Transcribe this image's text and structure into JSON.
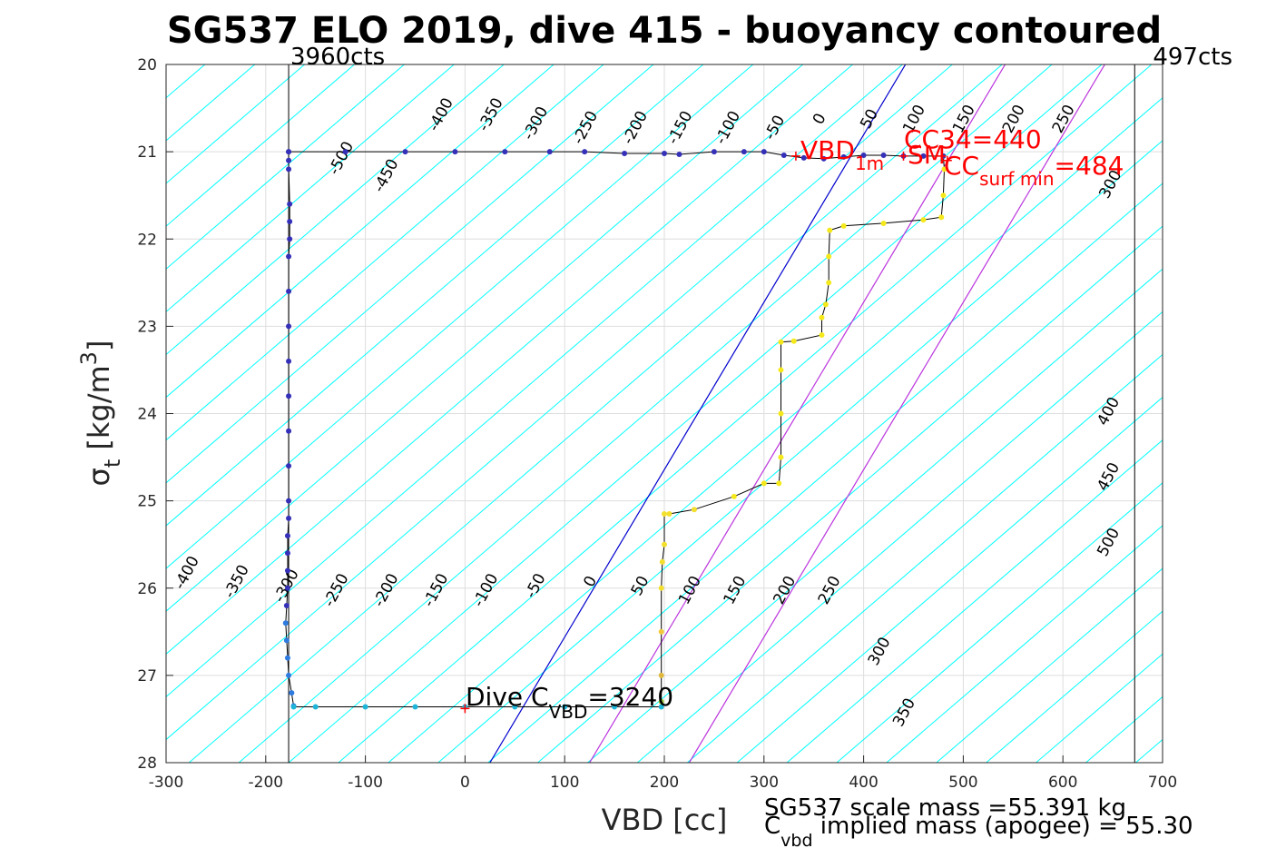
{
  "title": "SG537 ELO 2019, dive 415 - buoyancy contoured",
  "cts_left": "3960cts",
  "cts_right": "497cts",
  "xlabel": "VBD [cc]",
  "ylabel_main": "σ",
  "ylabel_sub": "t",
  "ylabel_units": " [kg/m",
  "ylabel_sup": "3",
  "ylabel_close": "]",
  "annotations": {
    "vbd1m_main": "VBD",
    "vbd1m_sub": "1m",
    "cc34": "CC",
    "cc34_value": "34=440",
    "sm": "SM",
    "cc_surf_main": "CC",
    "cc_surf_sub": "surf min",
    "cc_surf_value": "=484",
    "dive_main": "Dive C",
    "dive_sub": "VBD",
    "dive_value": "=3240"
  },
  "mass_line1": "SG537 scale mass =55.391 kg",
  "mass_line2_main": "C",
  "mass_line2_sub": "vbd",
  "mass_line2_rest": " implied mass (apogee) = 55.30",
  "colors": {
    "contour": "#00ffff",
    "zero_line": "#0000cd",
    "purple_line": "#bb33dd",
    "descent": "#3530b8",
    "bottom": "#1fb5d8",
    "red": "#ff0000",
    "grid": "#dedede"
  },
  "chart_data": {
    "type": "scatter",
    "title": "SG537 ELO 2019, dive 415 - buoyancy contoured",
    "xlabel": "VBD [cc]",
    "ylabel": "σt [kg/m3]",
    "xlim": [
      -300,
      700
    ],
    "ylim": [
      28,
      20
    ],
    "y_reversed": true,
    "grid": true,
    "xticks": [
      -300,
      -200,
      -100,
      0,
      100,
      200,
      300,
      400,
      500,
      600,
      700
    ],
    "yticks": [
      20,
      21,
      22,
      23,
      24,
      25,
      26,
      27,
      28
    ],
    "xtick_labels": [
      "-300",
      "-200",
      "-100",
      "0",
      "100",
      "200",
      "300",
      "400",
      "500",
      "600",
      "700"
    ],
    "ytick_labels": [
      "20",
      "21",
      "22",
      "23",
      "24",
      "25",
      "26",
      "27",
      "28"
    ],
    "vertical_lines": [
      {
        "x": -177,
        "label": "3960cts"
      },
      {
        "x": 672,
        "label": "497cts"
      }
    ],
    "buoyancy_contours": {
      "unit_vbd_per_sigma": 102,
      "x_at_sigma_27": -25,
      "upper_labels": [
        "-500",
        "-450",
        "-400",
        "-350",
        "-300",
        "-250",
        "-200",
        "-150",
        "-100",
        "-50",
        "0",
        "50",
        "100",
        "150",
        "200",
        "250",
        "300"
      ],
      "lower_labels": [
        "-400",
        "-350",
        "-300",
        "-250",
        "-200",
        "-150",
        "-100",
        "-50",
        "0",
        "50",
        "100",
        "150",
        "200",
        "250",
        "300",
        "350",
        "400",
        "450",
        "500"
      ],
      "zero_line": {
        "x_at_sigma_28": 25,
        "x_at_sigma_20": 442
      },
      "purple_lines": [
        {
          "x_at_sigma_28": 125,
          "x_at_sigma_20": 542
        },
        {
          "x_at_sigma_28": 225,
          "x_at_sigma_20": 642
        }
      ]
    },
    "series": [
      {
        "name": "descent",
        "points": [
          [
            -177,
            21.0
          ],
          [
            -177,
            21.1
          ],
          [
            -177,
            21.2
          ],
          [
            -176,
            21.6
          ],
          [
            -176,
            21.8
          ],
          [
            -176,
            22.0
          ],
          [
            -177,
            22.2
          ],
          [
            -177,
            22.6
          ],
          [
            -177,
            23.0
          ],
          [
            -177,
            23.4
          ],
          [
            -177,
            23.8
          ],
          [
            -177,
            24.2
          ],
          [
            -177,
            24.6
          ],
          [
            -177,
            25.0
          ],
          [
            -177,
            25.2
          ],
          [
            -178,
            25.4
          ],
          [
            -178,
            25.6
          ],
          [
            -178,
            25.8
          ],
          [
            -178,
            26.0
          ],
          [
            -179,
            26.2
          ],
          [
            -180,
            26.4
          ],
          [
            -179,
            26.6
          ],
          [
            -178,
            26.8
          ],
          [
            -177,
            27.0
          ],
          [
            -174,
            27.2
          ],
          [
            -172,
            27.35
          ]
        ]
      },
      {
        "name": "bottom",
        "points": [
          [
            -172,
            27.36
          ],
          [
            -150,
            27.36
          ],
          [
            -100,
            27.36
          ],
          [
            -50,
            27.36
          ],
          [
            0,
            27.36
          ],
          [
            50,
            27.36
          ],
          [
            100,
            27.36
          ],
          [
            150,
            27.36
          ],
          [
            197,
            27.36
          ]
        ]
      },
      {
        "name": "ascent",
        "points": [
          [
            197,
            27.3
          ],
          [
            197,
            27.0
          ],
          [
            197,
            26.5
          ],
          [
            197,
            26.0
          ],
          [
            198,
            25.7
          ],
          [
            200,
            25.5
          ],
          [
            200,
            25.15
          ],
          [
            205,
            25.15
          ],
          [
            230,
            25.1
          ],
          [
            270,
            24.95
          ],
          [
            300,
            24.8
          ],
          [
            315,
            24.8
          ],
          [
            317,
            24.5
          ],
          [
            317,
            24.0
          ],
          [
            317,
            23.5
          ],
          [
            317,
            23.18
          ],
          [
            330,
            23.17
          ],
          [
            358,
            23.1
          ],
          [
            358,
            22.9
          ],
          [
            362,
            22.75
          ],
          [
            365,
            22.5
          ],
          [
            365,
            22.2
          ],
          [
            366,
            21.9
          ],
          [
            380,
            21.85
          ],
          [
            420,
            21.82
          ],
          [
            460,
            21.78
          ],
          [
            478,
            21.75
          ],
          [
            480,
            21.5
          ],
          [
            481,
            21.2
          ],
          [
            480,
            21.05
          ]
        ]
      },
      {
        "name": "surface",
        "points": [
          [
            -177,
            21.0
          ],
          [
            -120,
            21.0
          ],
          [
            -60,
            21.0
          ],
          [
            -10,
            21.0
          ],
          [
            40,
            21.0
          ],
          [
            85,
            21.0
          ],
          [
            120,
            21.0
          ],
          [
            160,
            21.02
          ],
          [
            200,
            21.02
          ],
          [
            215,
            21.03
          ],
          [
            250,
            21.0
          ],
          [
            280,
            21.0
          ],
          [
            300,
            21.0
          ],
          [
            320,
            21.04
          ],
          [
            340,
            21.07
          ],
          [
            360,
            21.08
          ],
          [
            380,
            21.06
          ],
          [
            400,
            21.04
          ],
          [
            420,
            21.04
          ],
          [
            440,
            21.05
          ],
          [
            460,
            21.05
          ],
          [
            480,
            21.05
          ]
        ]
      }
    ],
    "markers": [
      {
        "label": "VBD 1m",
        "x": 332,
        "y": 21.05
      },
      {
        "label": "CC 34=440",
        "x": 440,
        "y": 21.05
      },
      {
        "label": "SM",
        "x": 478,
        "y": 21.05
      },
      {
        "label": "CC surf min =484",
        "x": 484,
        "y": 21.1
      },
      {
        "label": "Dive C VBD =3240",
        "x": 0,
        "y": 27.38
      }
    ]
  }
}
